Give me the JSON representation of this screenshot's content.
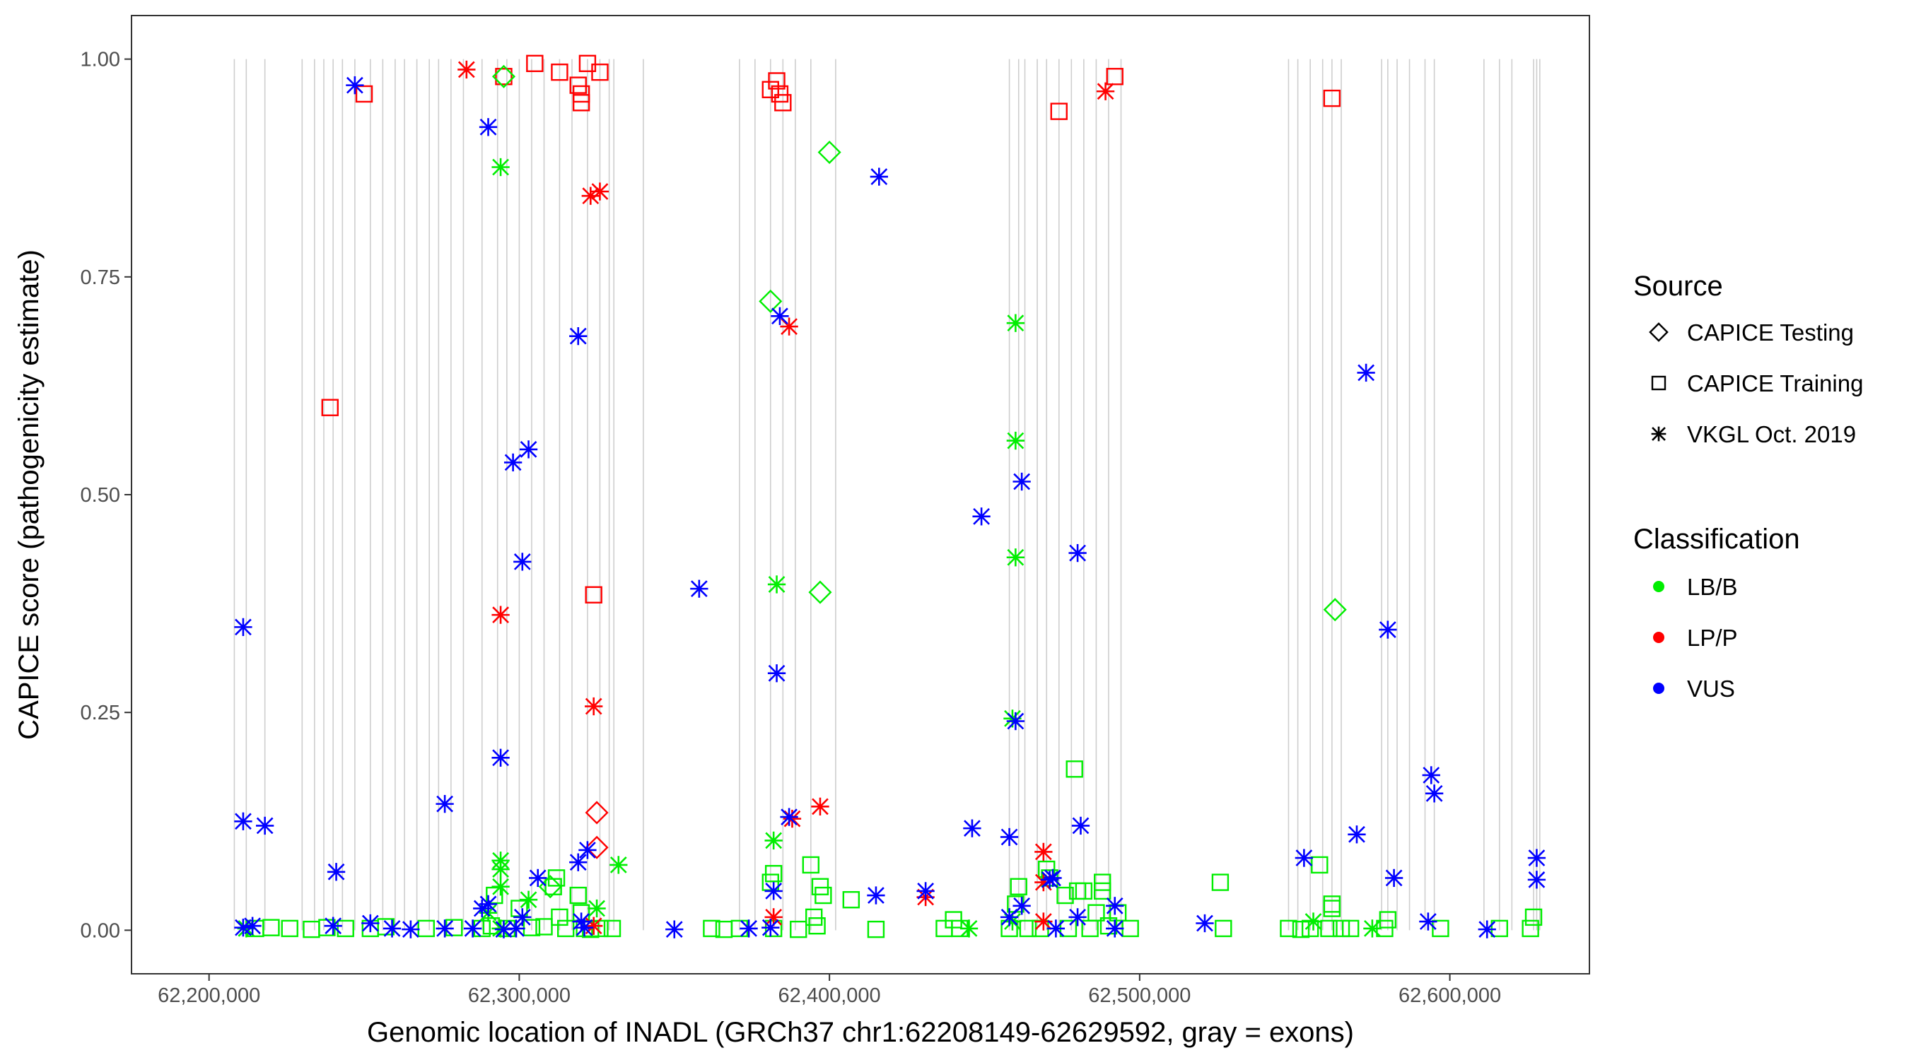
{
  "chart_data": {
    "type": "scatter",
    "title": "",
    "xlabel": "Genomic location of INADL (GRCh37 chr1:62208149-62629592, gray = exons)",
    "ylabel": "CAPICE score (pathogenicity estimate)",
    "xlim": [
      62175000,
      62645000
    ],
    "ylim": [
      -0.05,
      1.05
    ],
    "xticks": [
      62200000,
      62300000,
      62400000,
      62500000,
      62600000
    ],
    "xtick_labels": [
      "62,200,000",
      "62,300,000",
      "62,400,000",
      "62,500,000",
      "62,600,000"
    ],
    "yticks": [
      0,
      0.25,
      0.5,
      0.75,
      1.0
    ],
    "ytick_labels": [
      "0.00",
      "0.25",
      "0.50",
      "0.75",
      "1.00"
    ],
    "grid": false,
    "exon_color": "#bebebe",
    "exons": [
      62208149,
      62212000,
      62218000,
      62230000,
      62234000,
      62237000,
      62240000,
      62243000,
      62247000,
      62252000,
      62256000,
      62260000,
      62263000,
      62267000,
      62271000,
      62274000,
      62278000,
      62282000,
      62288000,
      62293000,
      62296000,
      62300000,
      62304000,
      62308000,
      62313000,
      62317000,
      62322000,
      62326000,
      62329000,
      62330500,
      62340000,
      62371000,
      62376000,
      62381000,
      62385000,
      62389000,
      62394000,
      62402000,
      62458000,
      62461000,
      62463000,
      62467000,
      62470000,
      62474000,
      62478000,
      62482000,
      62486000,
      62490000,
      62494000,
      62548000,
      62551000,
      62555000,
      62559000,
      62562000,
      62565000,
      62578000,
      62580000,
      62583000,
      62587000,
      62592000,
      62595000,
      62611000,
      62616000,
      62620000,
      62627000,
      62628000,
      62629000
    ],
    "legend": {
      "source_title": "Source",
      "source_entries": [
        {
          "label": "CAPICE Testing",
          "shape": "diamond"
        },
        {
          "label": "CAPICE Training",
          "shape": "square"
        },
        {
          "label": "VKGL Oct. 2019",
          "shape": "asterisk"
        }
      ],
      "class_title": "Classification",
      "class_entries": [
        {
          "label": "LB/B",
          "color": "#00ee00"
        },
        {
          "label": "LP/P",
          "color": "#ff0000"
        },
        {
          "label": "VUS",
          "color": "#0000ff"
        }
      ],
      "placement": "right"
    },
    "series": [
      {
        "name": "CAPICE Training · LP/P",
        "shape": "square",
        "color": "#ff0000",
        "points": [
          [
            62250000,
            0.96
          ],
          [
            62295000,
            0.98
          ],
          [
            62305000,
            0.995
          ],
          [
            62313000,
            0.985
          ],
          [
            62319000,
            0.97
          ],
          [
            62320000,
            0.96
          ],
          [
            62320000,
            0.95
          ],
          [
            62322000,
            0.995
          ],
          [
            62326000,
            0.985
          ],
          [
            62381000,
            0.965
          ],
          [
            62383000,
            0.975
          ],
          [
            62384000,
            0.96
          ],
          [
            62385000,
            0.95
          ],
          [
            62474000,
            0.94
          ],
          [
            62492000,
            0.98
          ],
          [
            62562000,
            0.955
          ],
          [
            62239000,
            0.6
          ],
          [
            62324000,
            0.385
          ]
        ]
      },
      {
        "name": "CAPICE Training · LB/B",
        "shape": "square",
        "color": "#00ee00",
        "points": [
          [
            62215000,
            0.002
          ],
          [
            62220000,
            0.003
          ],
          [
            62226000,
            0.002
          ],
          [
            62233000,
            0.001
          ],
          [
            62238000,
            0.003
          ],
          [
            62244000,
            0.002
          ],
          [
            62252000,
            0.002
          ],
          [
            62257000,
            0.004
          ],
          [
            62270000,
            0.002
          ],
          [
            62279000,
            0.003
          ],
          [
            62288000,
            0.002
          ],
          [
            62291000,
            0.005
          ],
          [
            62292000,
            0.04
          ],
          [
            62296000,
            0.002
          ],
          [
            62300000,
            0.025
          ],
          [
            62304000,
            0.003
          ],
          [
            62308000,
            0.004
          ],
          [
            62311000,
            0.05
          ],
          [
            62312000,
            0.06
          ],
          [
            62313000,
            0.015
          ],
          [
            62315000,
            0.002
          ],
          [
            62319000,
            0.04
          ],
          [
            62320000,
            0.02
          ],
          [
            62321000,
            0.002
          ],
          [
            62323000,
            0.001
          ],
          [
            62326000,
            0.002
          ],
          [
            62330000,
            0.002
          ],
          [
            62362000,
            0.002
          ],
          [
            62366000,
            0.001
          ],
          [
            62371000,
            0.002
          ],
          [
            62381000,
            0.055
          ],
          [
            62382000,
            0.065
          ],
          [
            62382000,
            0.002
          ],
          [
            62390000,
            0.001
          ],
          [
            62394000,
            0.075
          ],
          [
            62395000,
            0.015
          ],
          [
            62396000,
            0.005
          ],
          [
            62397000,
            0.05
          ],
          [
            62398000,
            0.04
          ],
          [
            62407000,
            0.035
          ],
          [
            62415000,
            0.001
          ],
          [
            62437000,
            0.002
          ],
          [
            62440000,
            0.012
          ],
          [
            62442000,
            0.002
          ],
          [
            62458000,
            0.002
          ],
          [
            62460000,
            0.03
          ],
          [
            62461000,
            0.05
          ],
          [
            62464000,
            0.002
          ],
          [
            62468000,
            0.002
          ],
          [
            62470000,
            0.07
          ],
          [
            62471000,
            0.06
          ],
          [
            62476000,
            0.04
          ],
          [
            62477000,
            0.002
          ],
          [
            62479000,
            0.185
          ],
          [
            62480000,
            0.045
          ],
          [
            62482000,
            0.045
          ],
          [
            62484000,
            0.002
          ],
          [
            62486000,
            0.02
          ],
          [
            62488000,
            0.055
          ],
          [
            62488000,
            0.045
          ],
          [
            62490000,
            0.005
          ],
          [
            62493000,
            0.02
          ],
          [
            62497000,
            0.002
          ],
          [
            62526000,
            0.055
          ],
          [
            62527000,
            0.002
          ],
          [
            62548000,
            0.002
          ],
          [
            62552000,
            0.001
          ],
          [
            62555000,
            0.002
          ],
          [
            62558000,
            0.075
          ],
          [
            62561000,
            0.002
          ],
          [
            62562000,
            0.03
          ],
          [
            62562000,
            0.025
          ],
          [
            62565000,
            0.002
          ],
          [
            62568000,
            0.002
          ],
          [
            62579000,
            0.002
          ],
          [
            62580000,
            0.012
          ],
          [
            62597000,
            0.002
          ],
          [
            62616000,
            0.002
          ],
          [
            62626000,
            0.002
          ],
          [
            62627000,
            0.015
          ]
        ]
      },
      {
        "name": "CAPICE Testing · LB/B",
        "shape": "diamond",
        "color": "#00ee00",
        "points": [
          [
            62295000,
            0.98
          ],
          [
            62400000,
            0.893
          ],
          [
            62381000,
            0.722
          ],
          [
            62397000,
            0.388
          ],
          [
            62563000,
            0.368
          ],
          [
            62310000,
            0.05
          ]
        ]
      },
      {
        "name": "CAPICE Testing · LP/P",
        "shape": "diamond",
        "color": "#ff0000",
        "points": [
          [
            62325000,
            0.135
          ],
          [
            62325000,
            0.095
          ]
        ]
      },
      {
        "name": "VKGL Oct. 2019 · LP/P",
        "shape": "asterisk",
        "color": "#ff0000",
        "points": [
          [
            62283000,
            0.988
          ],
          [
            62489000,
            0.963
          ],
          [
            62323000,
            0.843
          ],
          [
            62326000,
            0.848
          ],
          [
            62387000,
            0.693
          ],
          [
            62294000,
            0.362
          ],
          [
            62324000,
            0.257
          ],
          [
            62397000,
            0.142
          ],
          [
            62388000,
            0.128
          ],
          [
            62431000,
            0.038
          ],
          [
            62469000,
            0.09
          ],
          [
            62469000,
            0.055
          ],
          [
            62469000,
            0.01
          ],
          [
            62382000,
            0.015
          ],
          [
            62324000,
            0.005
          ]
        ]
      },
      {
        "name": "VKGL Oct. 2019 · LB/B",
        "shape": "asterisk",
        "color": "#00ee00",
        "points": [
          [
            62294000,
            0.876
          ],
          [
            62460000,
            0.697
          ],
          [
            62460000,
            0.562
          ],
          [
            62460000,
            0.428
          ],
          [
            62383000,
            0.397
          ],
          [
            62459000,
            0.243
          ],
          [
            62382000,
            0.103
          ],
          [
            62294000,
            0.08
          ],
          [
            62294000,
            0.07
          ],
          [
            62332000,
            0.075
          ],
          [
            62294000,
            0.05
          ],
          [
            62303000,
            0.035
          ],
          [
            62325000,
            0.025
          ],
          [
            62290000,
            0.02
          ],
          [
            62459000,
            0.01
          ],
          [
            62445000,
            0.002
          ],
          [
            62556000,
            0.01
          ],
          [
            62575000,
            0.002
          ],
          [
            62212000,
            0.002
          ],
          [
            62294000,
            0.002
          ]
        ]
      },
      {
        "name": "VKGL Oct. 2019 · VUS",
        "shape": "asterisk",
        "color": "#0000ff",
        "points": [
          [
            62247000,
            0.97
          ],
          [
            62290000,
            0.922
          ],
          [
            62416000,
            0.865
          ],
          [
            62384000,
            0.705
          ],
          [
            62319000,
            0.682
          ],
          [
            62573000,
            0.64
          ],
          [
            62303000,
            0.552
          ],
          [
            62298000,
            0.537
          ],
          [
            62462000,
            0.515
          ],
          [
            62449000,
            0.475
          ],
          [
            62480000,
            0.433
          ],
          [
            62301000,
            0.423
          ],
          [
            62358000,
            0.392
          ],
          [
            62211000,
            0.348
          ],
          [
            62580000,
            0.345
          ],
          [
            62383000,
            0.295
          ],
          [
            62460000,
            0.24
          ],
          [
            62294000,
            0.198
          ],
          [
            62594000,
            0.178
          ],
          [
            62595000,
            0.157
          ],
          [
            62276000,
            0.145
          ],
          [
            62387000,
            0.13
          ],
          [
            62211000,
            0.125
          ],
          [
            62218000,
            0.12
          ],
          [
            62481000,
            0.12
          ],
          [
            62446000,
            0.117
          ],
          [
            62570000,
            0.11
          ],
          [
            62458000,
            0.107
          ],
          [
            62322000,
            0.092
          ],
          [
            62553000,
            0.083
          ],
          [
            62628000,
            0.083
          ],
          [
            62319000,
            0.078
          ],
          [
            62241000,
            0.067
          ],
          [
            62582000,
            0.06
          ],
          [
            62306000,
            0.06
          ],
          [
            62628000,
            0.058
          ],
          [
            62471000,
            0.058
          ],
          [
            62472000,
            0.06
          ],
          [
            62382000,
            0.045
          ],
          [
            62415000,
            0.04
          ],
          [
            62431000,
            0.045
          ],
          [
            62462000,
            0.028
          ],
          [
            62492000,
            0.028
          ],
          [
            62288000,
            0.025
          ],
          [
            62290000,
            0.03
          ],
          [
            62301000,
            0.015
          ],
          [
            62320000,
            0.01
          ],
          [
            62458000,
            0.015
          ],
          [
            62480000,
            0.015
          ],
          [
            62521000,
            0.008
          ],
          [
            62593000,
            0.01
          ],
          [
            62252000,
            0.008
          ],
          [
            62211000,
            0.003
          ],
          [
            62214000,
            0.005
          ],
          [
            62240000,
            0.005
          ],
          [
            62259000,
            0.002
          ],
          [
            62265000,
            0.001
          ],
          [
            62276000,
            0.002
          ],
          [
            62285000,
            0.002
          ],
          [
            62295000,
            0.001
          ],
          [
            62299000,
            0.002
          ],
          [
            62321000,
            0.003
          ],
          [
            62350000,
            0.001
          ],
          [
            62374000,
            0.002
          ],
          [
            62381000,
            0.003
          ],
          [
            62473000,
            0.002
          ],
          [
            62492000,
            0.002
          ],
          [
            62612000,
            0.001
          ]
        ]
      }
    ]
  }
}
